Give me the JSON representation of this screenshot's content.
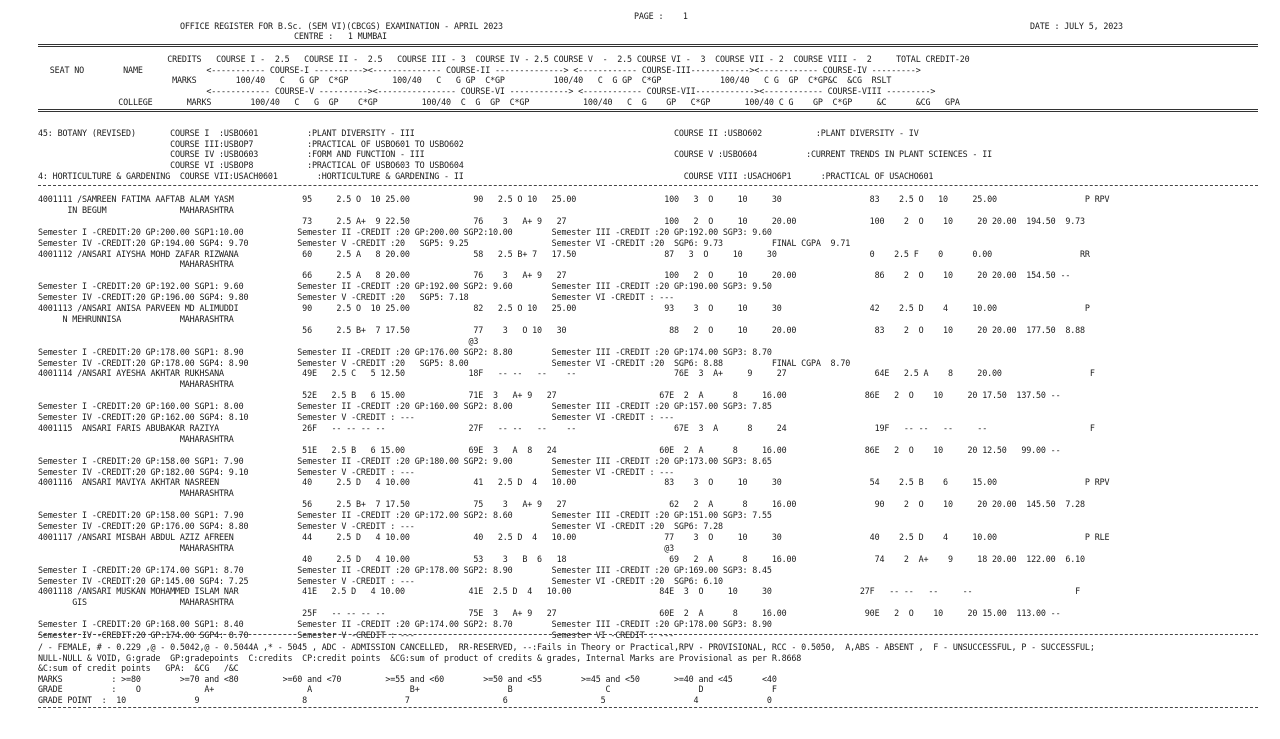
{
  "header": {
    "title": "OFFICE REGISTER FOR B.Sc. (SEM VI)(CBCGS) EXAMINATION - APRIL 2023",
    "centre": "CENTRE :   1 MUMBAI",
    "page": "PAGE :    1",
    "date": "DATE : JULY 5, 2023"
  },
  "col_heads": [
    "                          CREDITS   COURSE I -  2.5   COURSE II -  2.5   COURSE III - 3  COURSE IV - 2.5 COURSE V  -  2.5 COURSE VI -  3  COURSE VII - 2  COURSE VIII -  2     TOTAL CREDIT-20",
    "  SEAT NO        NAME             <----------- COURSE-I ----------><-------------- COURSE-II --------------> <------------ COURSE-III------------><------------ COURSE-IV --------->",
    "                           MARKS        100/40   C   G GP  C*GP         100/40   C   G GP  C*GP          100/40   C  G GP  C*GP            100/40   C G  GP  C*GP&C  &CG  RSLT",
    "                                  <------------ COURSE-V ----------><---------------- COURSE-VI ------------> <------------ COURSE-VII------------><------------ COURSE-VIII --------->",
    "                COLLEGE       MARKS        100/40   C   G  GP    C*GP         100/40  C  G  GP  C*GP           100/40   C  G    GP   C*GP       100/40 C G    GP  C*GP     &C      &CG   GPA"
  ],
  "course_lines": [
    "45: BOTANY (REVISED)       COURSE I  :USBO601          :PLANT DIVERSITY - III                                                     COURSE II :USBO602           :PLANT DIVERSITY - IV",
    "                           COURSE III:USBOP7           :PRACTICAL OF USBO601 TO USBO602",
    "                           COURSE IV :USBO603          :FORM AND FUNCTION - III                                                   COURSE V :USBO604          :CURRENT TRENDS IN PLANT SCIENCES - II",
    "                           COURSE VI :USBOP8           :PRACTICAL OF USBO603 TO USBO604",
    "4: HORTICULTURE & GARDENING  COURSE VII:USACH0601        :HORTICULTURE & GARDENING - II                                             COURSE VIII :USACHO6P1      :PRACTICAL OF USACHO601"
  ],
  "records": [
    "4001111 /SAMREEN FATIMA AAFTAB ALAM YASM              95     2.5 O  10 25.00             90   2.5 O 10   25.00                  100   3  O     10     30                  83    2.5 O   10     25.00                  P RPV",
    "      IN BEGUM               MAHARASHTRA",
    "                                                      73     2.5 A+  9 22.50             76    3   A+ 9   27                    100   2  O     10     20.00               100    2  O    10     20 20.00  194.50  9.73",
    "Semester I -CREDIT:20 GP:200.00 SGP1:10.00           Semester II -CREDIT :20 GP:200.00 SGP2:10.00        Semester III -CREDIT :20 GP:192.00 SGP3: 9.60",
    "Semester IV -CREDIT:20 GP:194.00 SGP4: 9.70          Semester V -CREDIT :20   SGP5: 9.25                 Semester VI -CREDIT :20  SGP6: 9.73          FINAL CGPA  9.71",
    "4001112 /ANSARI AIYSHA MOHD ZAFAR RIZWANA             60     2.5 A   8 20.00             58   2.5 B+ 7   17.50                  87   3  O     10     30                   0    2.5 F    0      0.00                  RR",
    "                             MAHARASHTRA",
    "                                                      66     2.5 A   8 20.00             76    3   A+ 9   27                    100   2  O     10     20.00                86    2  O    10     20 20.00  154.50 --",
    "Semester I -CREDIT:20 GP:192.00 SGP1: 9.60           Semester II -CREDIT :20 GP:192.00 SGP2: 9.60        Semester III -CREDIT :20 GP:190.00 SGP3: 9.50",
    "Semester IV -CREDIT:20 GP:196.00 SGP4: 9.80          Semester V -CREDIT :20   SGP5: 7.18                 Semester VI -CREDIT : ---",
    "4001113 /ANSARI ANISA PARVEEN MD ALIMUDDI             90     2.5 O  10 25.00             82   2.5 O 10   25.00                  93    3  O     10     30                  42    2.5 D    4     10.00                  P",
    "     N MEHRUNNISA            MAHARASHTRA",
    "                                                      56     2.5 B+  7 17.50             77    3   O 10   30                     88   2  O     10     20.00                83    2  O    10     20 20.00  177.50  8.88",
    "                                                                                        @3",
    "Semester I -CREDIT:20 GP:178.00 SGP1: 8.90           Semester II -CREDIT :20 GP:176.00 SGP2: 8.80        Semester III -CREDIT :20 GP:174.00 SGP3: 8.70",
    "Semester IV -CREDIT:20 GP:178.00 SGP4: 8.90          Semester V -CREDIT :20   SGP5: 8.00                 Semester VI -CREDIT :20  SGP6: 8.88          FINAL CGPA  8.70",
    "4001114 /ANSARI AYESHA AKHTAR RUKHSANA                49E   2.5 C   5 12.50             18F   -- --   --    --                    76E  3  A+     9     27                  64E   2.5 A    8     20.00                  F",
    "                             MAHARASHTRA",
    "                                                      52E   2.5 B   6 15.00             71E  3   A+ 9   27                     67E  2  A      8     16.00                86E   2  O    10     20 17.50  137.50 --",
    "Semester I -CREDIT:20 GP:160.00 SGP1: 8.00           Semester II -CREDIT :20 GP:160.00 SGP2: 8.00        Semester III -CREDIT :20 GP:157.00 SGP3: 7.85",
    "Semester IV -CREDIT:20 GP:162.00 SGP4: 8.10          Semester V -CREDIT : ---                            Semester VI -CREDIT : ---",
    "4001115  ANSARI FARIS ABUBAKAR RAZIYA                 26F   -- -- -- --                 27F   -- --   --    --                    67E  3  A      8     24                  19F   -- --   --     --                     F",
    "                             MAHARASHTRA",
    "                                                      51E   2.5 B   6 15.00             69E  3   A  8   24                     60E  2  A      8     16.00                86E   2  O    10     20 12.50   99.00 --",
    "Semester I -CREDIT:20 GP:158.00 SGP1: 7.90           Semester II -CREDIT :20 GP:180.00 SGP2: 9.00        Semester III -CREDIT :20 GP:173.00 SGP3: 8.65",
    "Semester IV -CREDIT:20 GP:182.00 SGP4: 9.10          Semester V -CREDIT : ---                            Semester VI -CREDIT : ---",
    "4001116  ANSARI MAVIYA AKHTAR NASREEN                 40     2.5 D   4 10.00             41   2.5 D  4   10.00                  83    3  O     10     30                  54    2.5 B    6     15.00                  P RPV",
    "                             MAHARASHTRA",
    "                                                      56     2.5 B+  7 17.50             75    3   A+ 9   27                     62   2  A      8     16.00                90    2  O    10     20 20.00  145.50  7.28",
    "Semester I -CREDIT:20 GP:158.00 SGP1: 7.90           Semester II -CREDIT :20 GP:172.00 SGP2: 8.60        Semester III -CREDIT :20 GP:151.00 SGP3: 7.55",
    "Semester IV -CREDIT:20 GP:176.00 SGP4: 8.80          Semester V -CREDIT : ---                            Semester VI -CREDIT :20  SGP6: 7.28",
    "4001117 /ANSARI MISBAH ABDUL AZIZ AFREEN              44     2.5 D   4 10.00             40   2.5 D  4   10.00                  77    3  O     10     30                  40    2.5 D    4     10.00                  P RLE",
    "                             MAHARASHTRA                                                                                        @3",
    "                                                      40     2.5 D   4 10.00             53    3   B  6   18                     69   2  A      8     16.00                74    2  A+    9     18 20.00  122.00  6.10",
    "Semester I -CREDIT:20 GP:174.00 SGP1: 8.70           Semester II -CREDIT :20 GP:178.00 SGP2: 8.90        Semester III -CREDIT :20 GP:169.00 SGP3: 8.45",
    "Semester IV -CREDIT:20 GP:145.00 SGP4: 7.25          Semester V -CREDIT : ---                            Semester VI -CREDIT :20  SGP6: 6.10",
    "4001118 /ANSARI MUSKAN MOHAMMED ISLAM NAR             41E   2.5 D   4 10.00             41E  2.5 D  4   10.00                  84E  3  O     10     30                  27F   -- --   --     --                     F",
    "       GIS                   MAHARASHTRA",
    "                                                      25F   -- -- -- --                 75E  3   A+ 9   27                     60E  2  A      8     16.00                90E   2  O    10     20 15.00  113.00 --",
    "Semester I -CREDIT:20 GP:168.00 SGP1: 8.40           Semester II -CREDIT :20 GP:174.00 SGP2: 8.70        Semester III -CREDIT :20 GP:178.00 SGP3: 8.90",
    "Semester IV -CREDIT:20 GP:174.00 SGP4: 8.70          Semester V -CREDIT : ---                            Semester VI -CREDIT : ---"
  ],
  "legend": [
    "/ - FEMALE, # - 0.229 ,@ - 0.5042,@ - 0.5044A ,* - 5045 , ADC - ADMISSION CANCELLED,  RR-RESERVED, --:Fails in Theory or Practical,RPV - PROVISIONAL, RCC - 0.5050,  A,ABS - ABSENT ,  F - UNSUCCESSFUL, P - SUCCESSFUL;",
    "NULL-NULL & VOID, G:grade  GP:gradepoints  C:credits  CP:credit points  &CG:sum of product of credits & grades, Internal Marks are Provisional as per R.8668",
    "&C:sum of credit points   GPA:  &CG   /&C",
    "MARKS          : >=80        >=70 and <80         >=60 and <70         >=55 and <60        >=50 and <55        >=45 and <50       >=40 and <45      <40",
    "GRADE          :    O             A+                   A                    B+                  B                   C                  D              F",
    "GRADE POINT  :  10              9                     8                    7                   6                   5                  4              0"
  ]
}
